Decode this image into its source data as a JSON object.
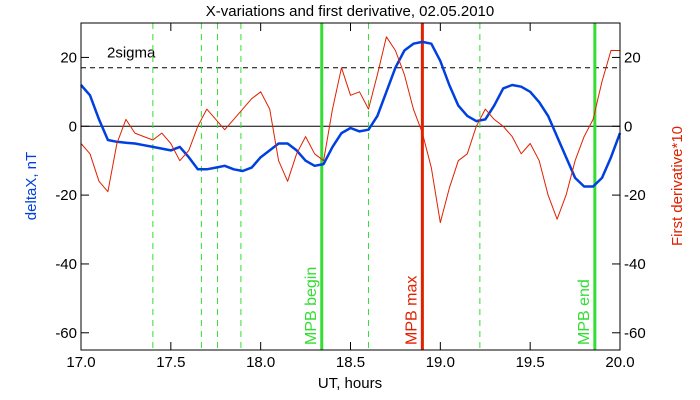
{
  "chart_data": {
    "type": "line",
    "title": "X-variations and first derivative, 02.05.2010",
    "x_label": "UT, hours",
    "y_label": "deltaX, nT",
    "y2_label": "First derivative*10",
    "xlim": [
      17.0,
      20.0
    ],
    "xticks": [
      {
        "value": 17.0,
        "label": "17.0"
      },
      {
        "value": 17.5,
        "label": "17.5"
      },
      {
        "value": 18.0,
        "label": "18.0"
      },
      {
        "value": 18.5,
        "label": "18.5"
      },
      {
        "value": 19.0,
        "label": "19.0"
      },
      {
        "value": 19.5,
        "label": "19.5"
      },
      {
        "value": 20.0,
        "label": "20.0"
      }
    ],
    "ylim": [
      -65,
      30
    ],
    "yticks": [
      20,
      0,
      -20,
      -40,
      -60
    ],
    "y2lim": [
      -65,
      30
    ],
    "y2ticks": [
      20,
      0,
      -20,
      -40,
      -60
    ],
    "x": [
      17.0,
      17.05,
      17.1,
      17.15,
      17.2,
      17.25,
      17.3,
      17.35,
      17.4,
      17.45,
      17.5,
      17.55,
      17.6,
      17.65,
      17.7,
      17.75,
      17.8,
      17.85,
      17.9,
      17.95,
      18.0,
      18.05,
      18.1,
      18.15,
      18.2,
      18.25,
      18.3,
      18.35,
      18.4,
      18.45,
      18.5,
      18.55,
      18.6,
      18.65,
      18.7,
      18.75,
      18.8,
      18.85,
      18.9,
      18.95,
      19.0,
      19.05,
      19.1,
      19.15,
      19.2,
      19.25,
      19.3,
      19.35,
      19.4,
      19.45,
      19.5,
      19.55,
      19.6,
      19.65,
      19.7,
      19.75,
      19.8,
      19.85,
      19.9,
      19.95,
      20.0
    ],
    "series": [
      {
        "name": "deltaX",
        "color": "#0040e0",
        "width": 2.5,
        "axis": "y",
        "values": [
          12,
          9,
          2,
          -4,
          -4.5,
          -4.8,
          -5,
          -5.5,
          -6,
          -6.5,
          -7,
          -6,
          -9,
          -12.5,
          -12.5,
          -12,
          -11.5,
          -12.5,
          -13,
          -12,
          -9,
          -7,
          -5,
          -5,
          -7,
          -10,
          -11.5,
          -11,
          -6,
          -2,
          -0.5,
          -1.5,
          -1,
          3,
          10,
          17,
          22,
          24,
          24.5,
          24,
          19,
          12,
          6,
          3,
          1.5,
          2,
          6,
          11,
          12,
          11.5,
          10,
          7,
          3,
          -3,
          -9,
          -15,
          -17.5,
          -17.5,
          -15,
          -9,
          -2
        ]
      },
      {
        "name": "First derivative*10",
        "color": "#e02000",
        "width": 1,
        "axis": "y2",
        "values": [
          -5,
          -8,
          -16,
          -19,
          -5,
          2,
          -2,
          -3,
          -4,
          -2,
          -5,
          -10,
          -7,
          0,
          5,
          2,
          -1,
          2,
          5,
          8,
          10,
          5,
          -10,
          -16,
          -8,
          -3,
          -8,
          -10,
          5,
          17,
          9,
          10,
          5,
          15,
          26,
          22,
          15,
          5,
          -2,
          -12,
          -28,
          -18,
          -10,
          -8,
          0,
          5,
          2,
          0,
          -3,
          -8,
          -5,
          -10,
          -20,
          -27,
          -20,
          -10,
          -3,
          2,
          13,
          22,
          22
        ]
      }
    ],
    "threshold": {
      "value": 17,
      "label": "2sigma"
    },
    "zero_line": 0,
    "markers": [
      {
        "x": 17.4,
        "color": "#33dd33",
        "style": "dashed"
      },
      {
        "x": 17.67,
        "color": "#33dd33",
        "style": "dashed"
      },
      {
        "x": 17.76,
        "color": "#33dd33",
        "style": "dashed"
      },
      {
        "x": 17.89,
        "color": "#33dd33",
        "style": "dashed"
      },
      {
        "x": 18.34,
        "color": "#33dd33",
        "style": "solid",
        "label": "MPB begin"
      },
      {
        "x": 18.6,
        "color": "#33dd33",
        "style": "dashed"
      },
      {
        "x": 18.9,
        "color": "#e02000",
        "style": "solid",
        "label": "MPB max"
      },
      {
        "x": 19.22,
        "color": "#33dd33",
        "style": "dashed"
      },
      {
        "x": 19.86,
        "color": "#33dd33",
        "style": "solid",
        "label": "MPB end"
      }
    ]
  }
}
